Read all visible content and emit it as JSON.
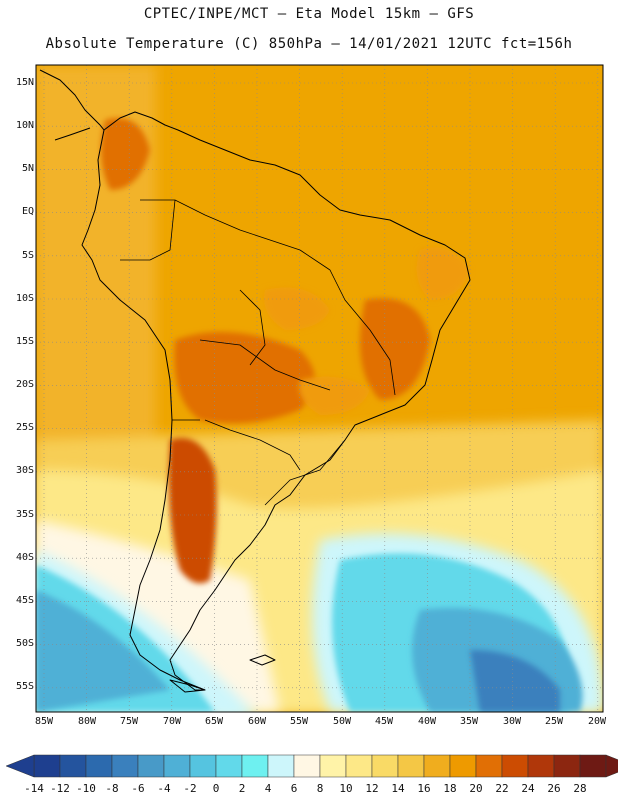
{
  "title": {
    "line1": "CPTEC/INPE/MCT –  Eta Model 15km – GFS",
    "line2": "Absolute Temperature (C) 850hPa – 14/01/2021 12UTC fct=156h"
  },
  "map": {
    "region": "South America",
    "lat_labels": [
      "15N",
      "10N",
      "5N",
      "EQ",
      "5S",
      "10S",
      "15S",
      "20S",
      "25S",
      "30S",
      "35S",
      "40S",
      "45S",
      "50S",
      "55S"
    ],
    "lon_labels": [
      "85W",
      "80W",
      "75W",
      "70W",
      "65W",
      "60W",
      "55W",
      "50W",
      "45W",
      "40W",
      "35W",
      "30W",
      "25W",
      "20W"
    ]
  },
  "colorbar": {
    "ticks": [
      "-14",
      "-12",
      "-10",
      "-8",
      "-6",
      "-4",
      "-2",
      "0",
      "2",
      "4",
      "6",
      "8",
      "10",
      "12",
      "14",
      "16",
      "18",
      "20",
      "22",
      "24",
      "26",
      "28"
    ],
    "colors": [
      "#1e3f8f",
      "#24549e",
      "#2c6aae",
      "#3a80bd",
      "#489ac8",
      "#4fb0d6",
      "#55c4e0",
      "#62d9ea",
      "#6ef0f0",
      "#cdf6fb",
      "#fff7e4",
      "#fff3a8",
      "#fde887",
      "#f9da66",
      "#f4c745",
      "#f0ad1e",
      "#ee9a00",
      "#e16f05",
      "#cc4c02",
      "#b0370a",
      "#8c2610",
      "#6e1a14"
    ]
  }
}
